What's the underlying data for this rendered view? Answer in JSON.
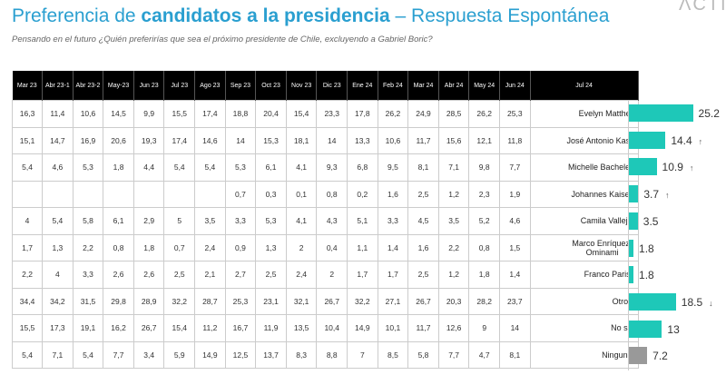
{
  "title": {
    "part1": "Preferencia de ",
    "part2": "candidatos a la presidencia",
    "part3": " – Respuesta Espontánea"
  },
  "subtitle": "Pensando en el futuro ¿Quién preferirías que sea el próximo presidente de Chile, excluyendo a Gabriel Boric?",
  "logo": "ACTIVA",
  "colors": {
    "title": "#2a9fd0",
    "bar": "#1ec8b8",
    "bar_ninguno": "#999999",
    "header_bg": "#000000"
  },
  "chart_data": {
    "type": "table",
    "columns": [
      "Mar 23",
      "Abr 23-1",
      "Abr 23-2",
      "May-23",
      "Jun 23",
      "Jul 23",
      "Ago 23",
      "Sep 23",
      "Oct 23",
      "Nov 23",
      "Dic 23",
      "Ene  24",
      "Feb 24",
      "Mar 24",
      "Abr 24",
      "May 24",
      "Jun 24",
      "Jul 24"
    ],
    "rows": [
      {
        "name": "Evelyn Matthei",
        "values": [
          "16,3",
          "11,4",
          "10,6",
          "14,5",
          "9,9",
          "15,5",
          "17,4",
          "18,8",
          "20,4",
          "15,4",
          "23,3",
          "17,8",
          "26,2",
          "24,9",
          "28,5",
          "26,2",
          "25,3"
        ],
        "jul": 25.2,
        "trend": ""
      },
      {
        "name": "José Antonio Kast",
        "values": [
          "15,1",
          "14,7",
          "16,9",
          "20,6",
          "19,3",
          "17,4",
          "14,6",
          "14",
          "15,3",
          "18,1",
          "14",
          "13,3",
          "10,6",
          "11,7",
          "15,6",
          "12,1",
          "11,8"
        ],
        "jul": 14.4,
        "trend": "↑"
      },
      {
        "name": "Michelle Bachelet",
        "values": [
          "5,4",
          "4,6",
          "5,3",
          "1,8",
          "4,4",
          "5,4",
          "5,4",
          "5,3",
          "6,1",
          "4,1",
          "9,3",
          "6,8",
          "9,5",
          "8,1",
          "7,1",
          "9,8",
          "7,7"
        ],
        "jul": 10.9,
        "trend": "↑"
      },
      {
        "name": "Johannes Kaiser",
        "values": [
          "",
          "",
          "",
          "",
          "",
          "",
          "",
          "0,7",
          "0,3",
          "0,1",
          "0,8",
          "0,2",
          "1,6",
          "2,5",
          "1,2",
          "2,3",
          "1,9"
        ],
        "jul": 3.7,
        "trend": "↑"
      },
      {
        "name": "Camila Vallejo",
        "values": [
          "4",
          "5,4",
          "5,8",
          "6,1",
          "2,9",
          "5",
          "3,5",
          "3,3",
          "5,3",
          "4,1",
          "4,3",
          "5,1",
          "3,3",
          "4,5",
          "3,5",
          "5,2",
          "4,6"
        ],
        "jul": 3.5,
        "trend": ""
      },
      {
        "name": "Marco Enríquez-Ominami",
        "values": [
          "1,7",
          "1,3",
          "2,2",
          "0,8",
          "1,8",
          "0,7",
          "2,4",
          "0,9",
          "1,3",
          "2",
          "0,4",
          "1,1",
          "1,4",
          "1,6",
          "2,2",
          "0,8",
          "1,5"
        ],
        "jul": 1.8,
        "trend": ""
      },
      {
        "name": "Franco Parisi",
        "values": [
          "2,2",
          "4",
          "3,3",
          "2,6",
          "2,6",
          "2,5",
          "2,1",
          "2,7",
          "2,5",
          "2,4",
          "2",
          "1,7",
          "1,7",
          "2,5",
          "1,2",
          "1,8",
          "1,4"
        ],
        "jul": 1.8,
        "trend": ""
      },
      {
        "name": "Otros",
        "values": [
          "34,4",
          "34,2",
          "31,5",
          "29,8",
          "28,9",
          "32,2",
          "28,7",
          "25,3",
          "23,1",
          "32,1",
          "26,7",
          "32,2",
          "27,1",
          "26,7",
          "20,3",
          "28,2",
          "23,7"
        ],
        "jul": 18.5,
        "trend": "↓"
      },
      {
        "name": "No sé",
        "values": [
          "15,5",
          "17,3",
          "19,1",
          "16,2",
          "26,7",
          "15,4",
          "11,2",
          "16,7",
          "11,9",
          "13,5",
          "10,4",
          "14,9",
          "10,1",
          "11,7",
          "12,6",
          "9",
          "14"
        ],
        "jul": 13,
        "trend": ""
      },
      {
        "name": "Ninguno",
        "values": [
          "5,4",
          "7,1",
          "5,4",
          "7,7",
          "3,4",
          "5,9",
          "14,9",
          "12,5",
          "13,7",
          "8,3",
          "8,8",
          "7",
          "8,5",
          "5,8",
          "7,7",
          "4,7",
          "8,1"
        ],
        "jul": 7.2,
        "trend": ""
      }
    ]
  }
}
